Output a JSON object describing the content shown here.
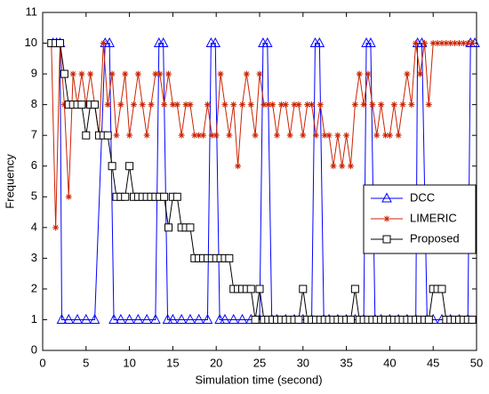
{
  "chart_data": {
    "type": "line",
    "xlabel": "Simulation time (second)",
    "ylabel": "Frequency",
    "xlim": [
      0,
      50
    ],
    "xticks": [
      0,
      5,
      10,
      15,
      20,
      25,
      30,
      35,
      40,
      45,
      50
    ],
    "ylim": [
      0,
      11
    ],
    "yticks": [
      0,
      1,
      2,
      3,
      4,
      5,
      6,
      7,
      8,
      9,
      10,
      11
    ],
    "legend": "right",
    "x": [
      1,
      1.5,
      2,
      2.5,
      3,
      3.5,
      4,
      4.5,
      5,
      5.5,
      6,
      6.5,
      7,
      7.5,
      8,
      8.5,
      9,
      9.5,
      10,
      10.5,
      11,
      11.5,
      12,
      12.5,
      13,
      13.5,
      14,
      14.5,
      15,
      15.5,
      16,
      16.5,
      17,
      17.5,
      18,
      18.5,
      19,
      19.5,
      20,
      20.5,
      21,
      21.5,
      22,
      22.5,
      23,
      23.5,
      24,
      24.5,
      25,
      25.5,
      26,
      26.5,
      27,
      27.5,
      28,
      28.5,
      29,
      29.5,
      30,
      30.5,
      31,
      31.5,
      32,
      32.5,
      33,
      33.5,
      34,
      34.5,
      35,
      35.5,
      36,
      36.5,
      37,
      37.5,
      38,
      38.5,
      39,
      39.5,
      40,
      40.5,
      41,
      41.5,
      42,
      42.5,
      43,
      43.5,
      44,
      44.5,
      45,
      45.5,
      46,
      46.5,
      47,
      47.5,
      48,
      48.5,
      49,
      49.5
    ],
    "series": [
      {
        "name": "DCC",
        "color": "#0000ff",
        "marker": "triangle",
        "x": [
          1.2,
          1.6,
          2.0,
          2.2,
          3,
          4,
          5,
          6,
          7.2,
          7.7,
          8.2,
          9,
          10,
          11,
          12,
          13,
          13.4,
          13.9,
          14.4,
          15,
          16,
          17,
          18,
          19,
          19.4,
          19.9,
          20.4,
          21,
          22,
          23,
          24,
          25,
          25.4,
          25.9,
          26.4,
          27,
          28,
          29,
          30,
          31,
          31.4,
          31.9,
          32.4,
          33,
          34,
          35,
          36,
          37,
          37.3,
          37.8,
          38.3,
          39,
          40,
          41,
          42,
          43,
          43.2,
          43.7,
          44.3,
          45,
          46,
          47,
          48,
          49,
          49.3,
          49.8
        ],
        "values": [
          10,
          10,
          10,
          1,
          1,
          1,
          1,
          1,
          10,
          10,
          1,
          1,
          1,
          1,
          1,
          1,
          10,
          10,
          1,
          1,
          1,
          1,
          1,
          1,
          10,
          10,
          1,
          1,
          1,
          1,
          1,
          1,
          10,
          10,
          1,
          1,
          1,
          1,
          1,
          1,
          10,
          10,
          1,
          1,
          1,
          1,
          1,
          1,
          10,
          10,
          1,
          1,
          1,
          1,
          1,
          1,
          10,
          10,
          1,
          1,
          1,
          1,
          1,
          1,
          10,
          10
        ]
      },
      {
        "name": "LIMERIC",
        "color": "#cc2200",
        "marker": "asterisk",
        "values": [
          10,
          4,
          10,
          8,
          5,
          9,
          8,
          9,
          8,
          9,
          8,
          7,
          10,
          8,
          9,
          7,
          8,
          9,
          7,
          8,
          9,
          8,
          7,
          8,
          9,
          9,
          8,
          9,
          8,
          8,
          7,
          8,
          8,
          7,
          7,
          7,
          8,
          7,
          7,
          9,
          8,
          7,
          8,
          6,
          8,
          9,
          8,
          7,
          9,
          8,
          8,
          8,
          7,
          8,
          8,
          7,
          8,
          8,
          7,
          8,
          8,
          7,
          8,
          7,
          7,
          6,
          7,
          6,
          7,
          6,
          8,
          9,
          8,
          9,
          8,
          7,
          8,
          7,
          7,
          8,
          7,
          8,
          9,
          8,
          10,
          9,
          10,
          8,
          10,
          10,
          10,
          10,
          10,
          10,
          10,
          10,
          10,
          10
        ]
      },
      {
        "name": "Proposed",
        "color": "#000000",
        "marker": "square",
        "values": [
          10,
          10,
          10,
          9,
          8,
          8,
          8,
          8,
          7,
          8,
          8,
          7,
          7,
          7,
          6,
          5,
          5,
          5,
          6,
          5,
          5,
          5,
          5,
          5,
          5,
          5,
          5,
          4,
          5,
          5,
          4,
          4,
          4,
          3,
          3,
          3,
          3,
          3,
          3,
          3,
          3,
          3,
          2,
          2,
          2,
          2,
          2,
          1,
          2,
          1,
          1,
          1,
          1,
          1,
          1,
          1,
          1,
          1,
          2,
          1,
          1,
          1,
          1,
          1,
          1,
          1,
          1,
          1,
          1,
          1,
          2,
          1,
          1,
          1,
          1,
          1,
          1,
          1,
          1,
          1,
          1,
          1,
          1,
          1,
          1,
          1,
          1,
          1,
          2,
          2,
          2,
          1,
          1,
          1,
          1,
          1,
          1,
          1
        ]
      }
    ]
  }
}
